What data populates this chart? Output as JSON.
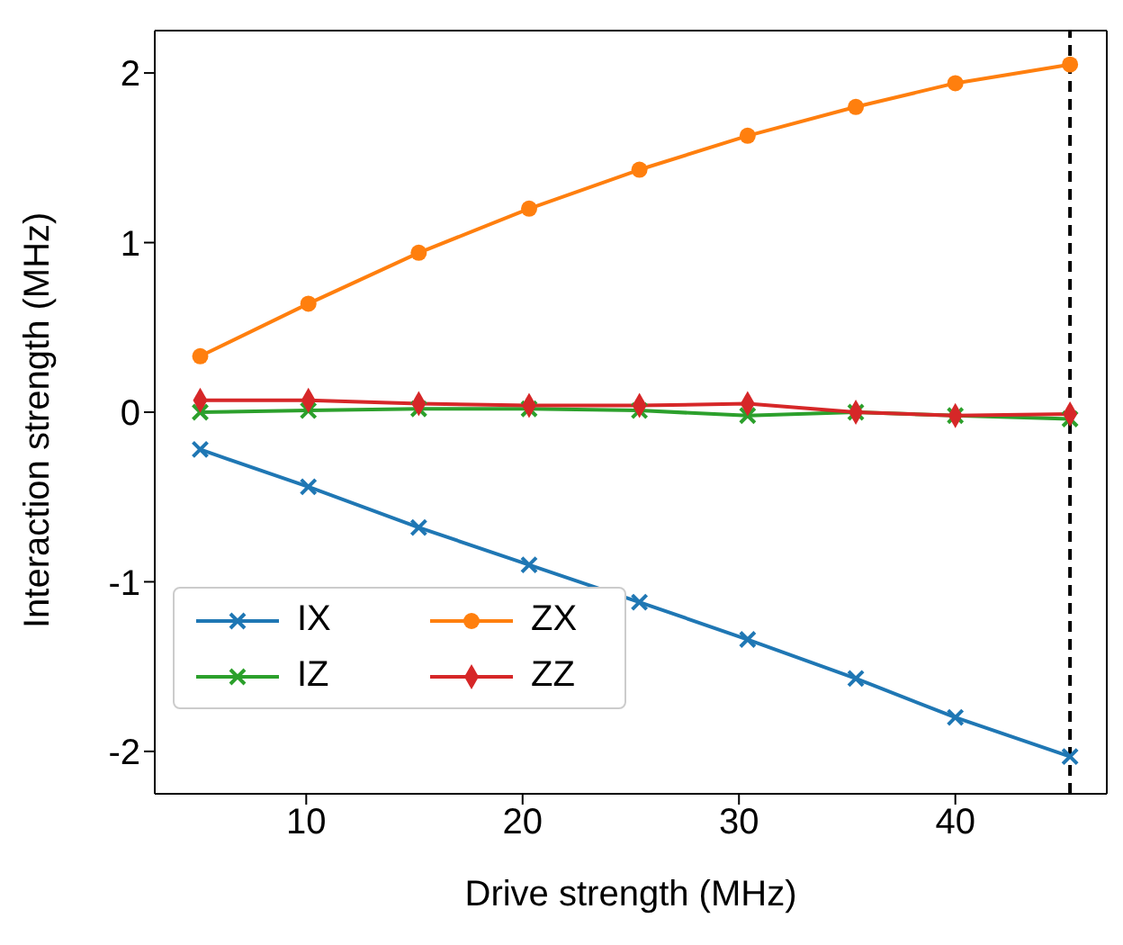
{
  "chart_data": {
    "type": "line",
    "xlabel": "Drive strength (MHz)",
    "ylabel": "Interaction strength (MHz)",
    "x": [
      5.1,
      10.1,
      15.2,
      20.3,
      25.4,
      30.4,
      35.4,
      40.0,
      45.3
    ],
    "xlim": [
      3,
      47
    ],
    "xticks": [
      10,
      20,
      30,
      40
    ],
    "ylim": [
      -2.25,
      2.25
    ],
    "yticks": [
      -2,
      -1,
      0,
      1,
      2
    ],
    "series": [
      {
        "name": "IX",
        "color": "#1f77b4",
        "marker": "cross",
        "values": [
          -0.22,
          -0.44,
          -0.68,
          -0.9,
          -1.12,
          -1.34,
          -1.57,
          -1.8,
          -2.03
        ]
      },
      {
        "name": "ZX",
        "color": "#ff7f0e",
        "marker": "circle",
        "values": [
          0.33,
          0.64,
          0.94,
          1.2,
          1.43,
          1.63,
          1.8,
          1.94,
          2.05
        ]
      },
      {
        "name": "IZ",
        "color": "#2ca02c",
        "marker": "cross",
        "values": [
          0,
          0.01,
          0.02,
          0.02,
          0.01,
          -0.02,
          0,
          -0.02,
          -0.04
        ]
      },
      {
        "name": "ZZ",
        "color": "#d62728",
        "marker": "diamond",
        "values": [
          0.07,
          0.07,
          0.05,
          0.04,
          0.04,
          0.05,
          0,
          -0.02,
          -0.01
        ]
      }
    ],
    "ref_lines": [
      {
        "axis": "x",
        "value": 45.3,
        "color": "#000000",
        "line_style": "dashed"
      }
    ],
    "legend": "bottom left",
    "grid": false,
    "line_style": "solid"
  }
}
